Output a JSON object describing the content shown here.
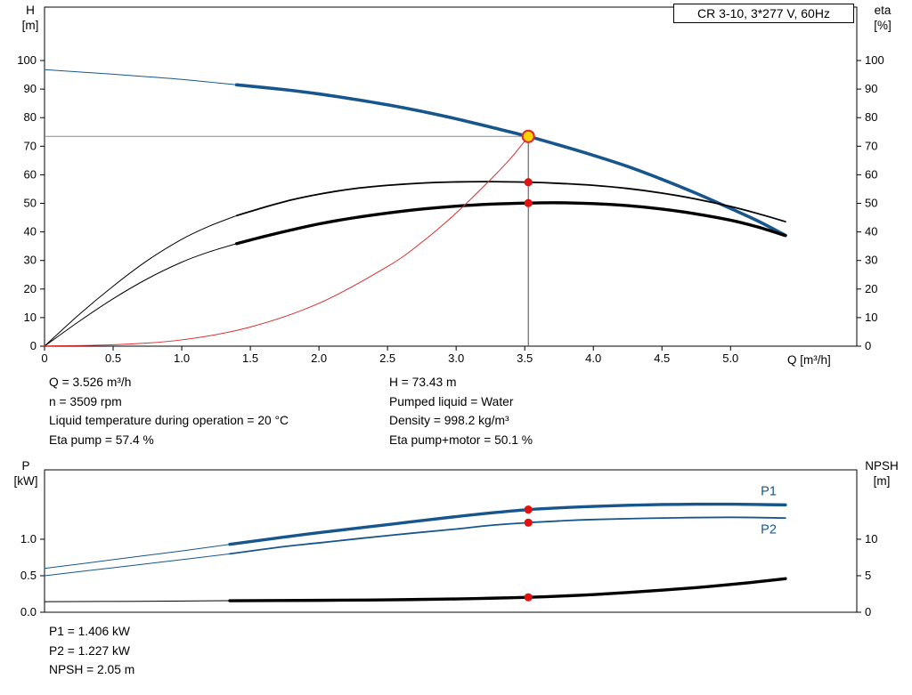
{
  "title_box": "CR 3-10, 3*277 V, 60Hz",
  "colors": {
    "curve_blue": "#17568c",
    "curve_black": "#000000",
    "curve_red": "#d93030",
    "marker_red": "#e01212",
    "duty_yellow": "#ffd400",
    "crosshair_h": "#8c8c8c",
    "crosshair_v": "#4a4a4a"
  },
  "results_top": {
    "left": [
      "Q = 3.526 m³/h",
      "n = 3509 rpm",
      "Liquid temperature during operation = 20 °C",
      "Eta pump = 57.4 %"
    ],
    "right": [
      "H = 73.43 m",
      "Pumped liquid = Water",
      "Density = 998.2 kg/m³",
      "Eta pump+motor = 50.1 %"
    ]
  },
  "results_bottom": [
    "P1 = 1.406 kW",
    "P2 = 1.227 kW",
    "NPSH = 2.05 m"
  ],
  "chart_data": [
    {
      "type": "line",
      "name": "qh-eta-chart",
      "x": {
        "label": "Q [m³/h]",
        "min": 0,
        "max": 5.92,
        "tick_values": [
          0,
          0.5,
          1,
          1.5,
          2,
          2.5,
          3,
          3.5,
          4,
          4.5,
          5
        ],
        "tick_labels": [
          "0",
          "0.5",
          "1.0",
          "1.5",
          "2.0",
          "2.5",
          "3.0",
          "3.5",
          "4.0",
          "4.5",
          "5.0"
        ]
      },
      "y_left": {
        "label_top": "H",
        "label_unit": "[m]",
        "min": 0,
        "max": 118.7,
        "tick_values": [
          0,
          10,
          20,
          30,
          40,
          50,
          60,
          70,
          80,
          90,
          100
        ],
        "tick_labels": [
          "0",
          "10",
          "20",
          "30",
          "40",
          "50",
          "60",
          "70",
          "80",
          "90",
          "100"
        ]
      },
      "y_right": {
        "label_top": "eta",
        "label_unit": "[%]",
        "min": 0,
        "max": 118.7,
        "tick_values": [
          0,
          10,
          20,
          30,
          40,
          50,
          60,
          70,
          80,
          90,
          100
        ],
        "tick_labels": [
          "0",
          "10",
          "20",
          "30",
          "40",
          "50",
          "60",
          "70",
          "80",
          "90",
          "100"
        ]
      },
      "crosshair": {
        "q": 3.526,
        "h": 73.43
      },
      "series": [
        {
          "name": "head-curve-extrapolated",
          "color": "curve_blue",
          "width": 1,
          "points": [
            [
              0,
              96.8
            ],
            [
              0.5,
              95.2
            ],
            [
              1.0,
              93.4
            ],
            [
              1.4,
              91.5
            ]
          ]
        },
        {
          "name": "head-curve",
          "color": "curve_blue",
          "width": 3.6,
          "points": [
            [
              1.4,
              91.5
            ],
            [
              1.75,
              89.8
            ],
            [
              2.0,
              88.3
            ],
            [
              2.25,
              86.5
            ],
            [
              2.5,
              84.5
            ],
            [
              2.75,
              82.2
            ],
            [
              3.0,
              79.6
            ],
            [
              3.25,
              76.7
            ],
            [
              3.526,
              73.43
            ],
            [
              3.75,
              70.4
            ],
            [
              4.0,
              66.8
            ],
            [
              4.25,
              62.9
            ],
            [
              4.5,
              58.4
            ],
            [
              4.75,
              53.5
            ],
            [
              5.0,
              48.2
            ],
            [
              5.2,
              43.8
            ],
            [
              5.4,
              38.8
            ]
          ]
        },
        {
          "name": "eta-pump-curve-extrapolated",
          "color": "curve_black",
          "width": 1,
          "points": [
            [
              0,
              0
            ],
            [
              0.25,
              11
            ],
            [
              0.5,
              21
            ],
            [
              0.75,
              30
            ],
            [
              1.0,
              37.4
            ],
            [
              1.2,
              42
            ],
            [
              1.4,
              45.7
            ]
          ]
        },
        {
          "name": "eta-pump-curve",
          "color": "curve_black",
          "width": 1.8,
          "points": [
            [
              1.4,
              45.7
            ],
            [
              1.6,
              48.6
            ],
            [
              1.8,
              51.2
            ],
            [
              2.0,
              53.2
            ],
            [
              2.25,
              55.1
            ],
            [
              2.5,
              56.3
            ],
            [
              2.75,
              57.1
            ],
            [
              3.0,
              57.5
            ],
            [
              3.25,
              57.6
            ],
            [
              3.526,
              57.4
            ],
            [
              3.75,
              57.0
            ],
            [
              4.0,
              56.3
            ],
            [
              4.25,
              55.2
            ],
            [
              4.5,
              53.6
            ],
            [
              4.75,
              51.5
            ],
            [
              5.0,
              48.9
            ],
            [
              5.2,
              46.4
            ],
            [
              5.4,
              43.6
            ]
          ]
        },
        {
          "name": "eta-pump-motor-curve-extrapolated",
          "color": "curve_black",
          "width": 1,
          "points": [
            [
              0,
              0
            ],
            [
              0.25,
              8.6
            ],
            [
              0.5,
              16.6
            ],
            [
              0.75,
              23.6
            ],
            [
              1.0,
              29.4
            ],
            [
              1.2,
              33
            ],
            [
              1.4,
              35.9
            ]
          ]
        },
        {
          "name": "eta-pump-motor-curve",
          "color": "curve_black",
          "width": 3.4,
          "points": [
            [
              1.4,
              35.9
            ],
            [
              1.6,
              38.4
            ],
            [
              1.8,
              40.7
            ],
            [
              2.0,
              42.8
            ],
            [
              2.25,
              44.9
            ],
            [
              2.5,
              46.6
            ],
            [
              2.75,
              48.0
            ],
            [
              3.0,
              49.0
            ],
            [
              3.25,
              49.7
            ],
            [
              3.526,
              50.1
            ],
            [
              3.75,
              50.2
            ],
            [
              4.0,
              49.9
            ],
            [
              4.25,
              49.2
            ],
            [
              4.5,
              48.0
            ],
            [
              4.75,
              46.3
            ],
            [
              5.0,
              44.1
            ],
            [
              5.2,
              41.7
            ],
            [
              5.4,
              38.7
            ]
          ]
        },
        {
          "name": "system-resistance-curve",
          "color": "curve_red",
          "width": 1,
          "points": [
            [
              0,
              0.1
            ],
            [
              0.5,
              0.5
            ],
            [
              1.0,
              2.2
            ],
            [
              1.5,
              6.7
            ],
            [
              2.0,
              15
            ],
            [
              2.5,
              27.9
            ],
            [
              2.75,
              36.4
            ],
            [
              3.0,
              46.6
            ],
            [
              3.25,
              58.3
            ],
            [
              3.4,
              65.9
            ],
            [
              3.526,
              73.43
            ]
          ]
        }
      ],
      "markers": [
        {
          "q": 3.526,
          "value": 73.43,
          "axis": "left",
          "style": "duty"
        },
        {
          "q": 3.526,
          "value": 57.4,
          "axis": "left",
          "style": "dot"
        },
        {
          "q": 3.526,
          "value": 50.1,
          "axis": "left",
          "style": "dot"
        }
      ],
      "labels": []
    },
    {
      "type": "line",
      "name": "power-npsh-chart",
      "x": {
        "label": "",
        "min": 0,
        "max": 5.92,
        "tick_values": [],
        "tick_labels": []
      },
      "y_left": {
        "label_top": "P",
        "label_unit": "[kW]",
        "min": 0,
        "max": 1.95,
        "tick_values": [
          0,
          0.5,
          1
        ],
        "tick_labels": [
          "0.0",
          "0.5",
          "1.0"
        ]
      },
      "y_right": {
        "label_top": "NPSH",
        "label_unit": "[m]",
        "min": 0,
        "max": 19.5,
        "tick_values": [
          0,
          5,
          10
        ],
        "tick_labels": [
          "0",
          "5",
          "10"
        ]
      },
      "series": [
        {
          "name": "p1-curve-extrapolated",
          "axis": "left",
          "color": "curve_blue",
          "width": 1,
          "points": [
            [
              0,
              0.6
            ],
            [
              0.5,
              0.72
            ],
            [
              1.0,
              0.84
            ],
            [
              1.35,
              0.93
            ]
          ]
        },
        {
          "name": "p1-curve",
          "axis": "left",
          "color": "curve_blue",
          "width": 3.4,
          "points": [
            [
              1.35,
              0.93
            ],
            [
              1.75,
              1.03
            ],
            [
              2.0,
              1.09
            ],
            [
              2.5,
              1.2
            ],
            [
              3.0,
              1.31
            ],
            [
              3.25,
              1.36
            ],
            [
              3.526,
              1.406
            ],
            [
              3.75,
              1.43
            ],
            [
              4.0,
              1.45
            ],
            [
              4.25,
              1.465
            ],
            [
              4.5,
              1.475
            ],
            [
              4.75,
              1.48
            ],
            [
              5.0,
              1.48
            ],
            [
              5.2,
              1.475
            ],
            [
              5.4,
              1.47
            ]
          ]
        },
        {
          "name": "p2-curve-extrapolated",
          "axis": "left",
          "color": "curve_blue",
          "width": 1,
          "points": [
            [
              0,
              0.5
            ],
            [
              0.5,
              0.61
            ],
            [
              1.0,
              0.72
            ],
            [
              1.35,
              0.8
            ]
          ]
        },
        {
          "name": "p2-curve",
          "axis": "left",
          "color": "curve_blue",
          "width": 1.8,
          "points": [
            [
              1.35,
              0.8
            ],
            [
              1.75,
              0.9
            ],
            [
              2.0,
              0.95
            ],
            [
              2.5,
              1.05
            ],
            [
              3.0,
              1.14
            ],
            [
              3.25,
              1.19
            ],
            [
              3.526,
              1.227
            ],
            [
              3.75,
              1.25
            ],
            [
              4.0,
              1.27
            ],
            [
              4.5,
              1.29
            ],
            [
              5.0,
              1.3
            ],
            [
              5.4,
              1.29
            ]
          ]
        },
        {
          "name": "npsh-curve-extrapolated",
          "axis": "right",
          "color": "curve_black",
          "width": 1,
          "points": [
            [
              0,
              1.45
            ],
            [
              0.7,
              1.5
            ],
            [
              1.35,
              1.58
            ]
          ]
        },
        {
          "name": "npsh-curve",
          "axis": "right",
          "color": "curve_black",
          "width": 3.4,
          "points": [
            [
              1.35,
              1.58
            ],
            [
              2.0,
              1.63
            ],
            [
              2.5,
              1.7
            ],
            [
              3.0,
              1.82
            ],
            [
              3.25,
              1.92
            ],
            [
              3.526,
              2.05
            ],
            [
              3.75,
              2.2
            ],
            [
              4.0,
              2.42
            ],
            [
              4.25,
              2.7
            ],
            [
              4.5,
              3.02
            ],
            [
              4.75,
              3.38
            ],
            [
              5.0,
              3.8
            ],
            [
              5.2,
              4.18
            ],
            [
              5.4,
              4.6
            ]
          ]
        }
      ],
      "markers": [
        {
          "q": 3.526,
          "value": 1.406,
          "axis": "left",
          "style": "dot"
        },
        {
          "q": 3.526,
          "value": 1.227,
          "axis": "left",
          "style": "dot"
        },
        {
          "q": 3.526,
          "value": 2.05,
          "axis": "right",
          "style": "dot"
        }
      ],
      "labels": [
        {
          "text": "P1",
          "q": 5.22,
          "value": 1.6
        },
        {
          "text": "P2",
          "q": 5.22,
          "value": 1.08
        }
      ]
    }
  ]
}
